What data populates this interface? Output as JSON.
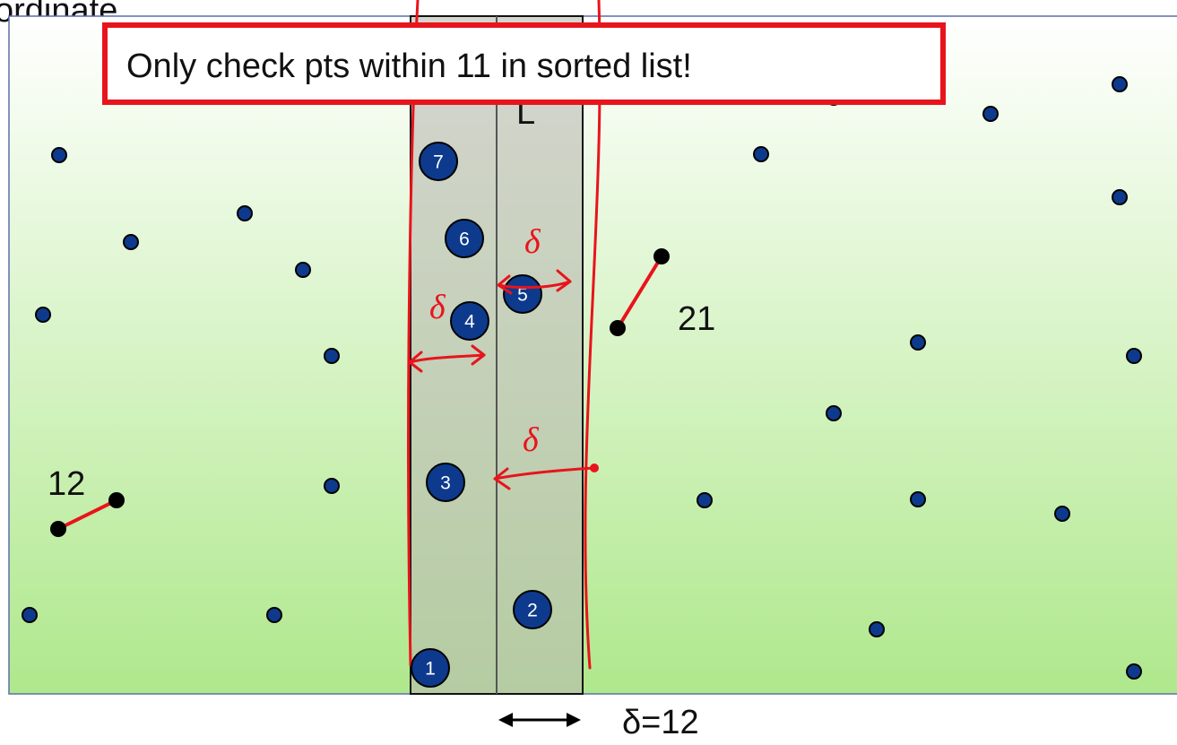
{
  "header_fragment": "ordinate.",
  "callout": "Only check pts within 11 in sorted list!",
  "line_label": "L",
  "strip_point_labels": [
    "1",
    "2",
    "3",
    "4",
    "5",
    "6",
    "7"
  ],
  "left_pair_distance": "12",
  "right_pair_distance": "21",
  "delta_label": "δ=12",
  "handwritten_delta": "δ",
  "colors": {
    "point_fill": "#0d3a8c",
    "point_stroke": "#000000",
    "strip_fill": "#b9b9b0",
    "annotation_red": "#e8141c",
    "background_top": "#ffffff",
    "background_bottom": "#afe88c"
  }
}
